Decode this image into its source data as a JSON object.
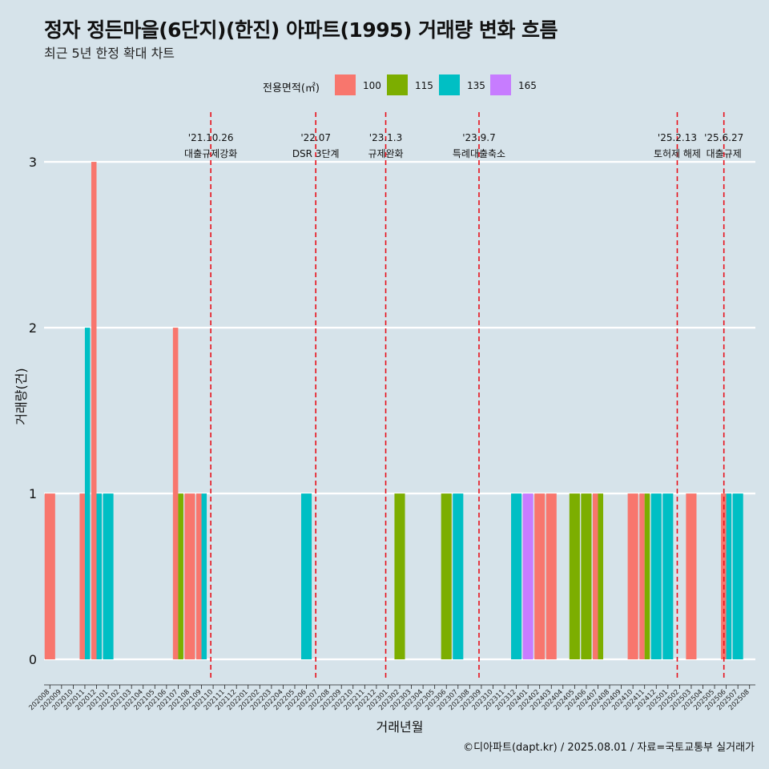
{
  "title": "정자 정든마을(6단지)(한진) 아파트(1995) 거래량 변화 흐름",
  "subtitle": "최근 5년 한정 확대 차트",
  "caption": "©디아파트(dapt.kr) / 2025.08.01 / 자료=국토교통부 실거래가",
  "legend": {
    "title": "전용면적(㎡)",
    "items": [
      {
        "label": "100",
        "color": "#F8766D"
      },
      {
        "label": "115",
        "color": "#7CAE00"
      },
      {
        "label": "135",
        "color": "#00BFC4"
      },
      {
        "label": "165",
        "color": "#C77CFF"
      }
    ]
  },
  "chart_data": {
    "type": "bar",
    "xlabel": "거래년월",
    "ylabel": "거래량(건)",
    "ylim": [
      -0.13,
      3.3
    ],
    "yticks": [
      0,
      1,
      2,
      3
    ],
    "categories": [
      "202008",
      "202009",
      "202010",
      "202011",
      "202012",
      "202101",
      "202102",
      "202103",
      "202104",
      "202105",
      "202106",
      "202107",
      "202108",
      "202109",
      "202110",
      "202111",
      "202112",
      "202201",
      "202202",
      "202203",
      "202204",
      "202205",
      "202206",
      "202207",
      "202208",
      "202209",
      "202210",
      "202211",
      "202212",
      "202301",
      "202302",
      "202303",
      "202304",
      "202305",
      "202306",
      "202307",
      "202308",
      "202309",
      "202310",
      "202311",
      "202312",
      "202401",
      "202402",
      "202403",
      "202404",
      "202405",
      "202406",
      "202407",
      "202408",
      "202409",
      "202410",
      "202411",
      "202412",
      "202501",
      "202502",
      "202503",
      "202504",
      "202505",
      "202506",
      "202507",
      "202508"
    ],
    "series": [
      {
        "name": "100",
        "color": "#F8766D",
        "values": [
          1,
          0,
          0,
          1,
          3,
          0,
          0,
          0,
          0,
          0,
          0,
          2,
          1,
          1,
          0,
          0,
          0,
          0,
          0,
          0,
          0,
          0,
          0,
          0,
          0,
          0,
          0,
          0,
          0,
          0,
          0,
          0,
          0,
          0,
          0,
          0,
          0,
          0,
          0,
          0,
          0,
          0,
          1,
          1,
          0,
          0,
          0,
          1,
          0,
          0,
          1,
          1,
          0,
          0,
          0,
          1,
          0,
          0,
          1,
          0,
          0
        ]
      },
      {
        "name": "115",
        "color": "#7CAE00",
        "values": [
          0,
          0,
          0,
          0,
          0,
          0,
          0,
          0,
          0,
          0,
          0,
          1,
          0,
          0,
          0,
          0,
          0,
          0,
          0,
          0,
          0,
          0,
          0,
          0,
          0,
          0,
          0,
          0,
          0,
          0,
          1,
          0,
          0,
          0,
          1,
          0,
          0,
          0,
          0,
          0,
          0,
          0,
          0,
          0,
          0,
          1,
          1,
          1,
          0,
          0,
          0,
          1,
          0,
          0,
          0,
          0,
          0,
          0,
          0,
          0,
          0
        ]
      },
      {
        "name": "135",
        "color": "#00BFC4",
        "values": [
          0,
          0,
          0,
          2,
          1,
          1,
          0,
          0,
          0,
          0,
          0,
          0,
          0,
          1,
          0,
          0,
          0,
          0,
          0,
          0,
          0,
          0,
          1,
          0,
          0,
          0,
          0,
          0,
          0,
          0,
          0,
          0,
          0,
          0,
          0,
          1,
          0,
          0,
          0,
          0,
          1,
          0,
          0,
          0,
          0,
          0,
          0,
          0,
          0,
          0,
          0,
          0,
          1,
          1,
          0,
          0,
          0,
          0,
          1,
          1,
          0
        ]
      },
      {
        "name": "165",
        "color": "#C77CFF",
        "values": [
          0,
          0,
          0,
          0,
          0,
          0,
          0,
          0,
          0,
          0,
          0,
          0,
          0,
          0,
          0,
          0,
          0,
          0,
          0,
          0,
          0,
          0,
          0,
          0,
          0,
          0,
          0,
          0,
          0,
          0,
          0,
          0,
          0,
          0,
          0,
          0,
          0,
          0,
          0,
          0,
          0,
          1,
          0,
          0,
          0,
          0,
          0,
          0,
          0,
          0,
          0,
          0,
          0,
          0,
          0,
          0,
          0,
          0,
          0,
          0,
          0
        ]
      }
    ],
    "events": [
      {
        "date": "'21.10.26",
        "label": "대출규제강화",
        "at": 14.3
      },
      {
        "date": "'22.07",
        "label": "DSR 3단계",
        "at": 23.3
      },
      {
        "date": "'23.1.3",
        "label": "규제완화",
        "at": 29.3
      },
      {
        "date": "'23.9.7",
        "label": "특례대출축소",
        "at": 37.3
      },
      {
        "date": "'25.2.13",
        "label": "토허제 해제",
        "at": 54.3
      },
      {
        "date": "'25.6.27",
        "label": "대출규제",
        "at": 58.3
      }
    ]
  }
}
